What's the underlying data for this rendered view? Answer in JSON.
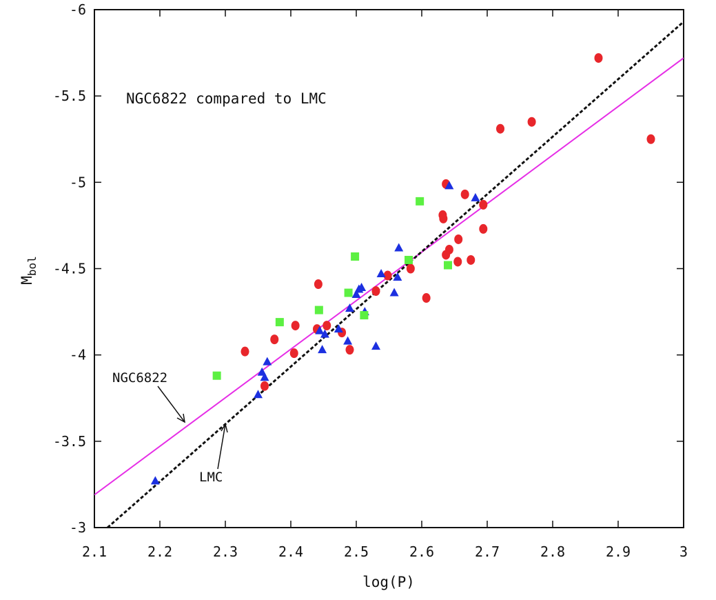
{
  "chart_data": {
    "type": "scatter",
    "title": "NGC6822 compared to LMC",
    "xlabel": "log(P)",
    "ylabel": "M",
    "ylabel_sub": "bol",
    "xlim": [
      2.1,
      3.0
    ],
    "ylim": [
      -3,
      -6
    ],
    "grid": false,
    "x_ticks": [
      2.1,
      2.2,
      2.3,
      2.4,
      2.5,
      2.6,
      2.7,
      2.8,
      2.9,
      3.0
    ],
    "x_tick_labels": [
      "2.1",
      "2.2",
      "2.3",
      "2.4",
      "2.5",
      "2.6",
      "2.7",
      "2.8",
      "2.9",
      "3"
    ],
    "y_ticks": [
      -3,
      -3.5,
      -4,
      -4.5,
      -5,
      -5.5,
      -6
    ],
    "y_tick_labels": [
      "-3",
      "-3.5",
      "-4",
      "-4.5",
      "-5",
      "-5.5",
      "-6"
    ],
    "series": [
      {
        "name": "red circles",
        "marker": "circle",
        "color": "#e8262b",
        "points": [
          [
            2.33,
            -4.02
          ],
          [
            2.36,
            -3.82
          ],
          [
            2.375,
            -4.09
          ],
          [
            2.405,
            -4.01
          ],
          [
            2.407,
            -4.17
          ],
          [
            2.44,
            -4.15
          ],
          [
            2.442,
            -4.41
          ],
          [
            2.455,
            -4.17
          ],
          [
            2.478,
            -4.13
          ],
          [
            2.49,
            -4.03
          ],
          [
            2.53,
            -4.37
          ],
          [
            2.548,
            -4.46
          ],
          [
            2.583,
            -4.5
          ],
          [
            2.607,
            -4.33
          ],
          [
            2.632,
            -4.81
          ],
          [
            2.633,
            -4.79
          ],
          [
            2.637,
            -4.58
          ],
          [
            2.637,
            -4.99
          ],
          [
            2.642,
            -4.61
          ],
          [
            2.655,
            -4.54
          ],
          [
            2.656,
            -4.67
          ],
          [
            2.666,
            -4.93
          ],
          [
            2.675,
            -4.55
          ],
          [
            2.694,
            -4.73
          ],
          [
            2.694,
            -4.87
          ],
          [
            2.72,
            -5.31
          ],
          [
            2.768,
            -5.35
          ],
          [
            2.87,
            -5.72
          ],
          [
            2.95,
            -5.25
          ]
        ]
      },
      {
        "name": "blue triangles",
        "marker": "triangle",
        "color": "#1c30e0",
        "points": [
          [
            2.193,
            -3.27
          ],
          [
            2.35,
            -3.77
          ],
          [
            2.356,
            -3.9
          ],
          [
            2.36,
            -3.87
          ],
          [
            2.364,
            -3.96
          ],
          [
            2.444,
            -4.14
          ],
          [
            2.448,
            -4.03
          ],
          [
            2.452,
            -4.12
          ],
          [
            2.473,
            -4.15
          ],
          [
            2.487,
            -4.08
          ],
          [
            2.49,
            -4.27
          ],
          [
            2.5,
            -4.35
          ],
          [
            2.504,
            -4.38
          ],
          [
            2.508,
            -4.39
          ],
          [
            2.513,
            -4.25
          ],
          [
            2.53,
            -4.05
          ],
          [
            2.538,
            -4.47
          ],
          [
            2.558,
            -4.36
          ],
          [
            2.563,
            -4.45
          ],
          [
            2.565,
            -4.62
          ],
          [
            2.642,
            -4.98
          ],
          [
            2.682,
            -4.91
          ]
        ]
      },
      {
        "name": "green squares",
        "marker": "square",
        "color": "#5cf042",
        "points": [
          [
            2.287,
            -3.88
          ],
          [
            2.383,
            -4.19
          ],
          [
            2.443,
            -4.26
          ],
          [
            2.488,
            -4.36
          ],
          [
            2.498,
            -4.57
          ],
          [
            2.512,
            -4.23
          ],
          [
            2.58,
            -4.55
          ],
          [
            2.597,
            -4.89
          ],
          [
            2.64,
            -4.52
          ]
        ]
      }
    ],
    "lines": [
      {
        "name": "NGC6822",
        "color": "#e62ee6",
        "style": "solid",
        "x": [
          2.1,
          3.0
        ],
        "y": [
          -3.19,
          -5.72
        ]
      },
      {
        "name": "LMC",
        "color": "#111111",
        "style": "dashed",
        "x": [
          2.12,
          3.0
        ],
        "y": [
          -3.0,
          -5.93
        ]
      }
    ],
    "annotations": [
      {
        "text": "NGC6822",
        "points_to": "NGC6822 line"
      },
      {
        "text": "LMC",
        "points_to": "LMC line"
      }
    ]
  }
}
